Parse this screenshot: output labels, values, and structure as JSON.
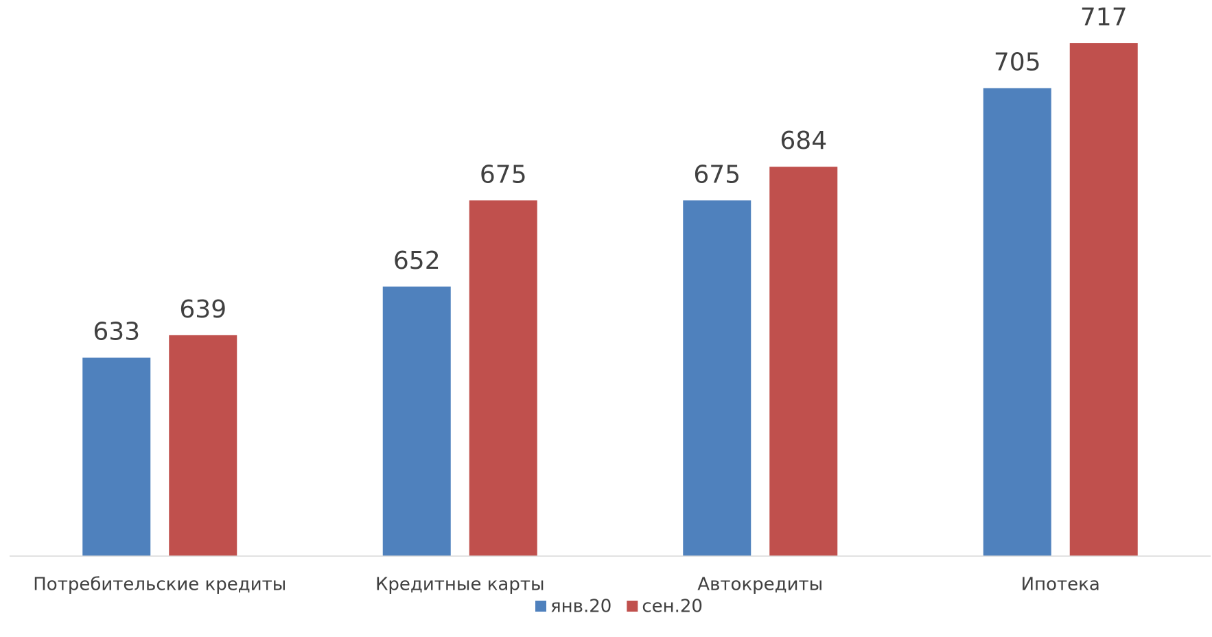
{
  "chart_data": {
    "type": "bar",
    "categories": [
      "Потребительские кредиты",
      "Кредитные карты",
      "Автокредиты",
      "Ипотека"
    ],
    "series": [
      {
        "name": "янв.20",
        "color": "#4f81bd",
        "values": [
          633,
          652,
          675,
          705
        ]
      },
      {
        "name": "сен.20",
        "color": "#c0504d",
        "values": [
          639,
          675,
          684,
          717
        ]
      }
    ],
    "ylim": [
      580,
      730
    ],
    "legend": "bottom"
  }
}
